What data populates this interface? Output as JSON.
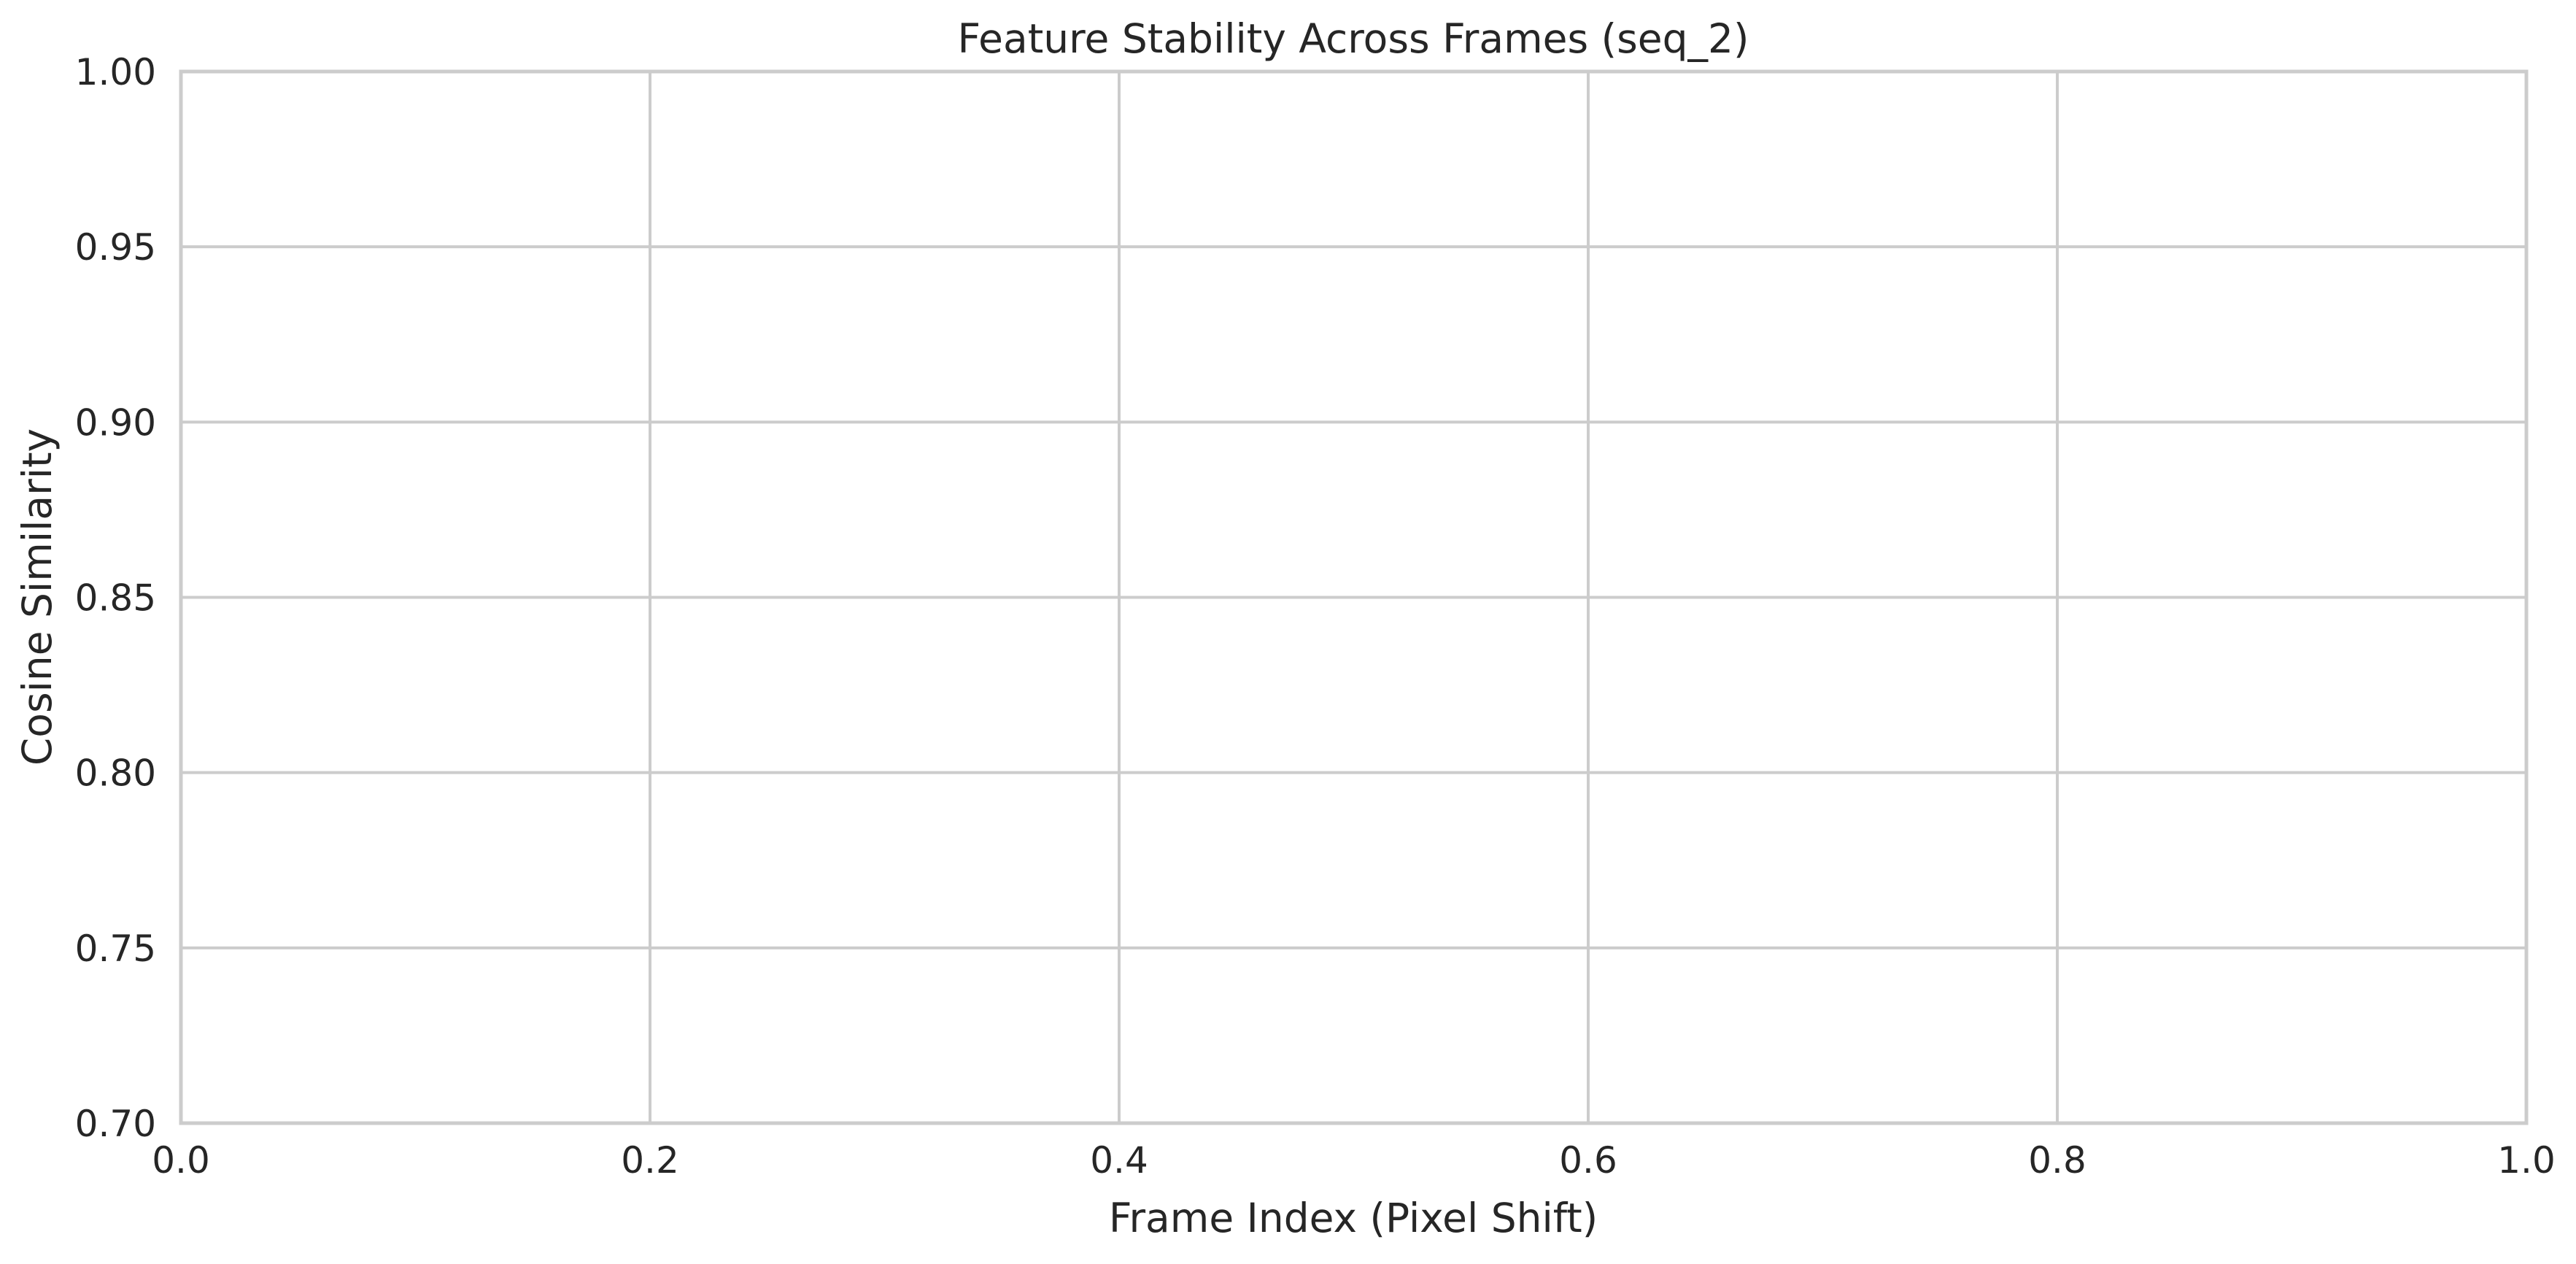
{
  "chart_data": {
    "type": "line",
    "title": "Feature Stability Across Frames (seq_2)",
    "xlabel": "Frame Index (Pixel Shift)",
    "ylabel": "Cosine Similarity",
    "xlim": [
      0.0,
      1.0
    ],
    "ylim": [
      0.7,
      1.0
    ],
    "x_ticks": [
      "0.0",
      "0.2",
      "0.4",
      "0.6",
      "0.8",
      "1.0"
    ],
    "y_ticks": [
      "0.70",
      "0.75",
      "0.80",
      "0.85",
      "0.90",
      "0.95",
      "1.00"
    ],
    "grid": true,
    "series": [],
    "colors": {
      "background": "#ffffff",
      "grid": "#cccccc",
      "text": "#262626"
    }
  }
}
